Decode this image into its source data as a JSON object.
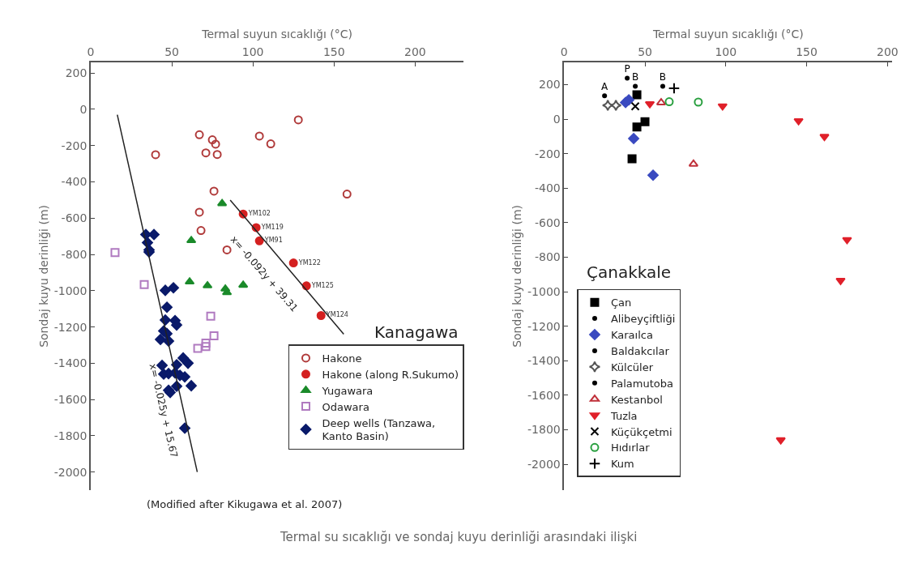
{
  "chart_data": [
    {
      "type": "scatter",
      "title": "Kanagawa",
      "xlabel": "Termal suyun sıcaklığı (°C)",
      "ylabel": "Sondaj kuyu derinliği (m)",
      "xlim": [
        0,
        230
      ],
      "xticks": [
        0,
        50,
        100,
        150,
        200
      ],
      "ylim": [
        -2100,
        260
      ],
      "yticks": [
        200,
        0,
        -200,
        -400,
        -600,
        -800,
        -1000,
        -1200,
        -1400,
        -1600,
        -1800,
        -2000
      ],
      "legend": "bottom right",
      "series": [
        {
          "name": "Hakone",
          "color": "#b03a3a",
          "marker": "circle-open",
          "x": [
            40,
            67,
            75,
            77,
            71,
            78,
            104,
            111,
            128,
            76,
            158,
            67,
            68,
            84
          ],
          "values": [
            -250,
            -140,
            -168,
            -192,
            -240,
            -249,
            -147,
            -190,
            -58,
            -451,
            -467,
            -567,
            -668,
            -775
          ]
        },
        {
          "name": "Hakone (along R.Sukumo)",
          "color": "#d42020",
          "marker": "circle",
          "x": [
            94,
            102,
            104,
            125,
            133,
            142
          ],
          "values": [
            -577,
            -652,
            -725,
            -847,
            -973,
            -1137
          ],
          "value_labels": [
            "YM102",
            "YM119",
            "YM91",
            "YM122",
            "YM125",
            "YM124"
          ]
        },
        {
          "name": "Yugawara",
          "color": "#1a8a2a",
          "marker": "triangle-up",
          "x": [
            81,
            62,
            61,
            72,
            83,
            84,
            94
          ],
          "values": [
            -519,
            -723,
            -951,
            -972,
            -990,
            -1010,
            -969
          ]
        },
        {
          "name": "Odawara",
          "color": "#b07ac0",
          "marker": "square-open",
          "x": [
            15,
            33,
            74,
            76,
            66,
            71,
            71
          ],
          "values": [
            -790,
            -966,
            -1140,
            -1249,
            -1318,
            -1289,
            -1308
          ]
        },
        {
          "name": "Deep wells (Tanzawa, Kanto Basin)",
          "color": "#0a1a6a",
          "marker": "diamond",
          "x": [
            34,
            39,
            35,
            36,
            36,
            46,
            51,
            47,
            46,
            52,
            53,
            45,
            47,
            43,
            48,
            44,
            53,
            57,
            60,
            45,
            48,
            52,
            55,
            58,
            53,
            62,
            48,
            49,
            58
          ],
          "values": [
            -690,
            -690,
            -735,
            -775,
            -786,
            -998,
            -984,
            -1091,
            -1162,
            -1165,
            -1189,
            -1222,
            -1237,
            -1269,
            -1278,
            -1412,
            -1408,
            -1371,
            -1400,
            -1460,
            -1457,
            -1453,
            -1467,
            -1475,
            -1527,
            -1524,
            -1549,
            -1561,
            -1758
          ]
        },
        {
          "type": "line",
          "color": "#222222",
          "x": [
            16.4,
            65.7
          ],
          "values": [
            -30,
            -2000
          ]
        },
        {
          "type": "line",
          "color": "#222222",
          "x": [
            86,
            156
          ],
          "values": [
            -500,
            -1240
          ]
        }
      ],
      "annotations": [
        "x= -0.025y + 15.67",
        "x= -0.092y + 39.31",
        "(Modified after Kikugawa et al. 2007)",
        "Termal su sıcaklığı ve sondaj kuyu derinliği arasındaki ilişki"
      ]
    },
    {
      "type": "scatter",
      "title": "Çanakkale",
      "xlabel": "Termal suyun sıcaklığı (°C)",
      "ylabel": "Sondaj kuyu derinliği (m)",
      "xlim": [
        0,
        203
      ],
      "xticks": [
        0,
        50,
        100,
        150,
        200
      ],
      "ylim": [
        -2150,
        330
      ],
      "yticks": [
        200,
        0,
        -200,
        -400,
        -600,
        -800,
        -1000,
        -1200,
        -1400,
        -1600,
        -1800,
        -2000
      ],
      "legend": "bottom left",
      "series": [
        {
          "name": "Çan",
          "color": "#000000",
          "marker": "square",
          "x": [
            45,
            45,
            50,
            42
          ],
          "values": [
            141,
            -45,
            -15,
            -230
          ]
        },
        {
          "name": "Alibeyçiftliği",
          "color": "#000000",
          "marker": "none",
          "x": [
            25
          ],
          "values": [
            135
          ],
          "value_labels": [
            "A"
          ]
        },
        {
          "name": "Karaılca",
          "color": "#3a4ac0",
          "marker": "diamond",
          "x": [
            38,
            40,
            43,
            55
          ],
          "values": [
            97,
            112,
            -112,
            -325
          ]
        },
        {
          "name": "Baldakcılar",
          "color": "#000000",
          "marker": "none",
          "x": [
            44,
            61
          ],
          "values": [
            190,
            190
          ],
          "value_labels": [
            "B",
            "B"
          ]
        },
        {
          "name": "Külcüler",
          "color": "#555555",
          "marker": "star-diamond-open",
          "x": [
            27,
            32
          ],
          "values": [
            80,
            80
          ]
        },
        {
          "name": "Palamutoba",
          "color": "#000000",
          "marker": "none",
          "x": [
            39
          ],
          "values": [
            237
          ],
          "value_labels": [
            "P"
          ]
        },
        {
          "name": "Kestanbol",
          "color": "#c0303a",
          "marker": "triangle-up-open",
          "x": [
            60,
            80
          ],
          "values": [
            96,
            -260
          ]
        },
        {
          "name": "Tuzla",
          "color": "#e0202a",
          "marker": "triangle-down",
          "x": [
            53,
            98,
            145,
            161,
            175,
            171,
            134
          ],
          "values": [
            89,
            76,
            -10,
            -101,
            -699,
            -935,
            -1859
          ]
        },
        {
          "name": "Küçükçetmi",
          "color": "#000000",
          "marker": "cross",
          "x": [
            44
          ],
          "values": [
            74
          ]
        },
        {
          "name": "Hıdırlar",
          "color": "#2aa040",
          "marker": "circle-open",
          "x": [
            65,
            83
          ],
          "values": [
            101,
            99
          ]
        },
        {
          "name": "Kum",
          "color": "#000000",
          "marker": "cross-thin-open",
          "x": [
            68
          ],
          "values": [
            179
          ]
        }
      ]
    }
  ]
}
